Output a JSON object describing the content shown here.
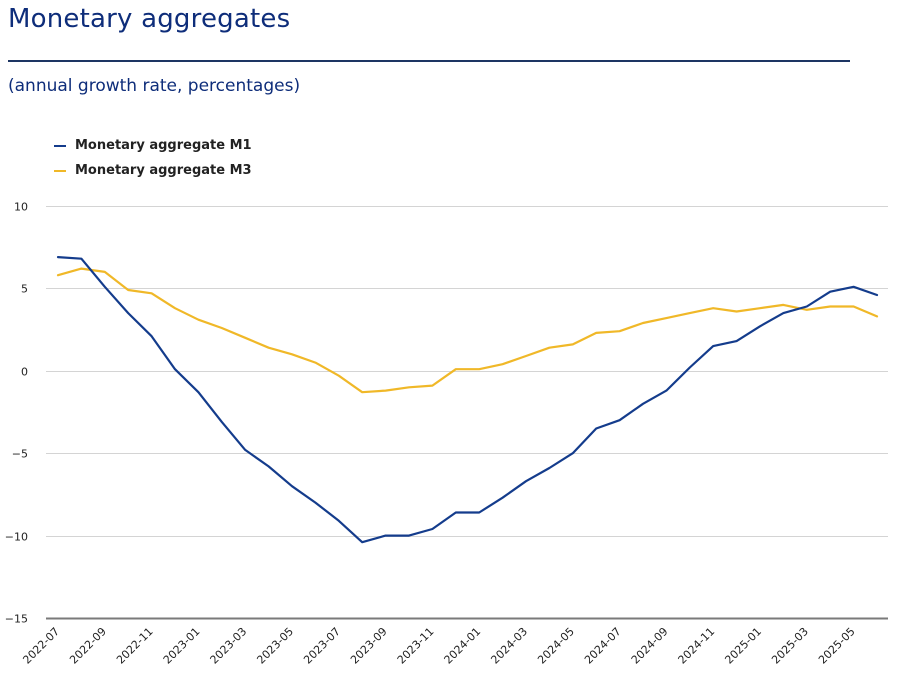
{
  "header": {
    "title": "Monetary aggregates",
    "subtitle": "(annual growth rate, percentages)"
  },
  "chart_data": {
    "type": "line",
    "title": "Monetary aggregates",
    "subtitle": "(annual growth rate, percentages)",
    "xlabel": "",
    "ylabel": "",
    "ylim": [
      -15,
      10
    ],
    "yticks": [
      "10",
      "5",
      "0",
      "-5",
      "-10",
      "-15"
    ],
    "ytick_values": [
      10,
      5,
      0,
      -5,
      -10,
      -15
    ],
    "grid": true,
    "legend_position": "top-left",
    "x": [
      "2022-07",
      "2022-08",
      "2022-09",
      "2022-10",
      "2022-11",
      "2022-12",
      "2023-01",
      "2023-02",
      "2023-03",
      "2023-04",
      "2023-05",
      "2023-06",
      "2023-07",
      "2023-08",
      "2023-09",
      "2023-10",
      "2023-11",
      "2023-12",
      "2024-01",
      "2024-02",
      "2024-03",
      "2024-04",
      "2024-05",
      "2024-06",
      "2024-07",
      "2024-08",
      "2024-09",
      "2024-10",
      "2024-11",
      "2024-12",
      "2025-01",
      "2025-02",
      "2025-03",
      "2025-04",
      "2025-05",
      "2025-06"
    ],
    "xtick_labels": [
      "2022-07",
      "2022-09",
      "2022-11",
      "2023-01",
      "2023-03",
      "2023-05",
      "2023-07",
      "2023-09",
      "2023-11",
      "2024-01",
      "2024-03",
      "2024-05",
      "2024-07",
      "2024-09",
      "2024-11",
      "2025-01",
      "2025-03",
      "2025-05"
    ],
    "series": [
      {
        "name": "Monetary aggregate M1",
        "color": "#143c8c",
        "values": [
          6.9,
          6.8,
          5.1,
          3.5,
          2.1,
          0.1,
          -1.3,
          -3.1,
          -4.8,
          -5.8,
          -7.0,
          -8.0,
          -9.1,
          -10.4,
          -10.0,
          -10.0,
          -9.6,
          -8.6,
          -8.6,
          -7.7,
          -6.7,
          -5.9,
          -5.0,
          -3.5,
          -3.0,
          -2.0,
          -1.2,
          0.2,
          1.5,
          1.8,
          2.7,
          3.5,
          3.9,
          4.8,
          5.1,
          4.6
        ]
      },
      {
        "name": "Monetary aggregate M3",
        "color": "#f0b828",
        "values": [
          5.8,
          6.2,
          6.0,
          4.9,
          4.7,
          3.8,
          3.1,
          2.6,
          2.0,
          1.4,
          1.0,
          0.5,
          -0.3,
          -1.3,
          -1.2,
          -1.0,
          -0.9,
          0.1,
          0.1,
          0.4,
          0.9,
          1.4,
          1.6,
          2.3,
          2.4,
          2.9,
          3.2,
          3.5,
          3.8,
          3.6,
          3.8,
          4.0,
          3.7,
          3.9,
          3.9,
          3.3
        ]
      }
    ]
  }
}
